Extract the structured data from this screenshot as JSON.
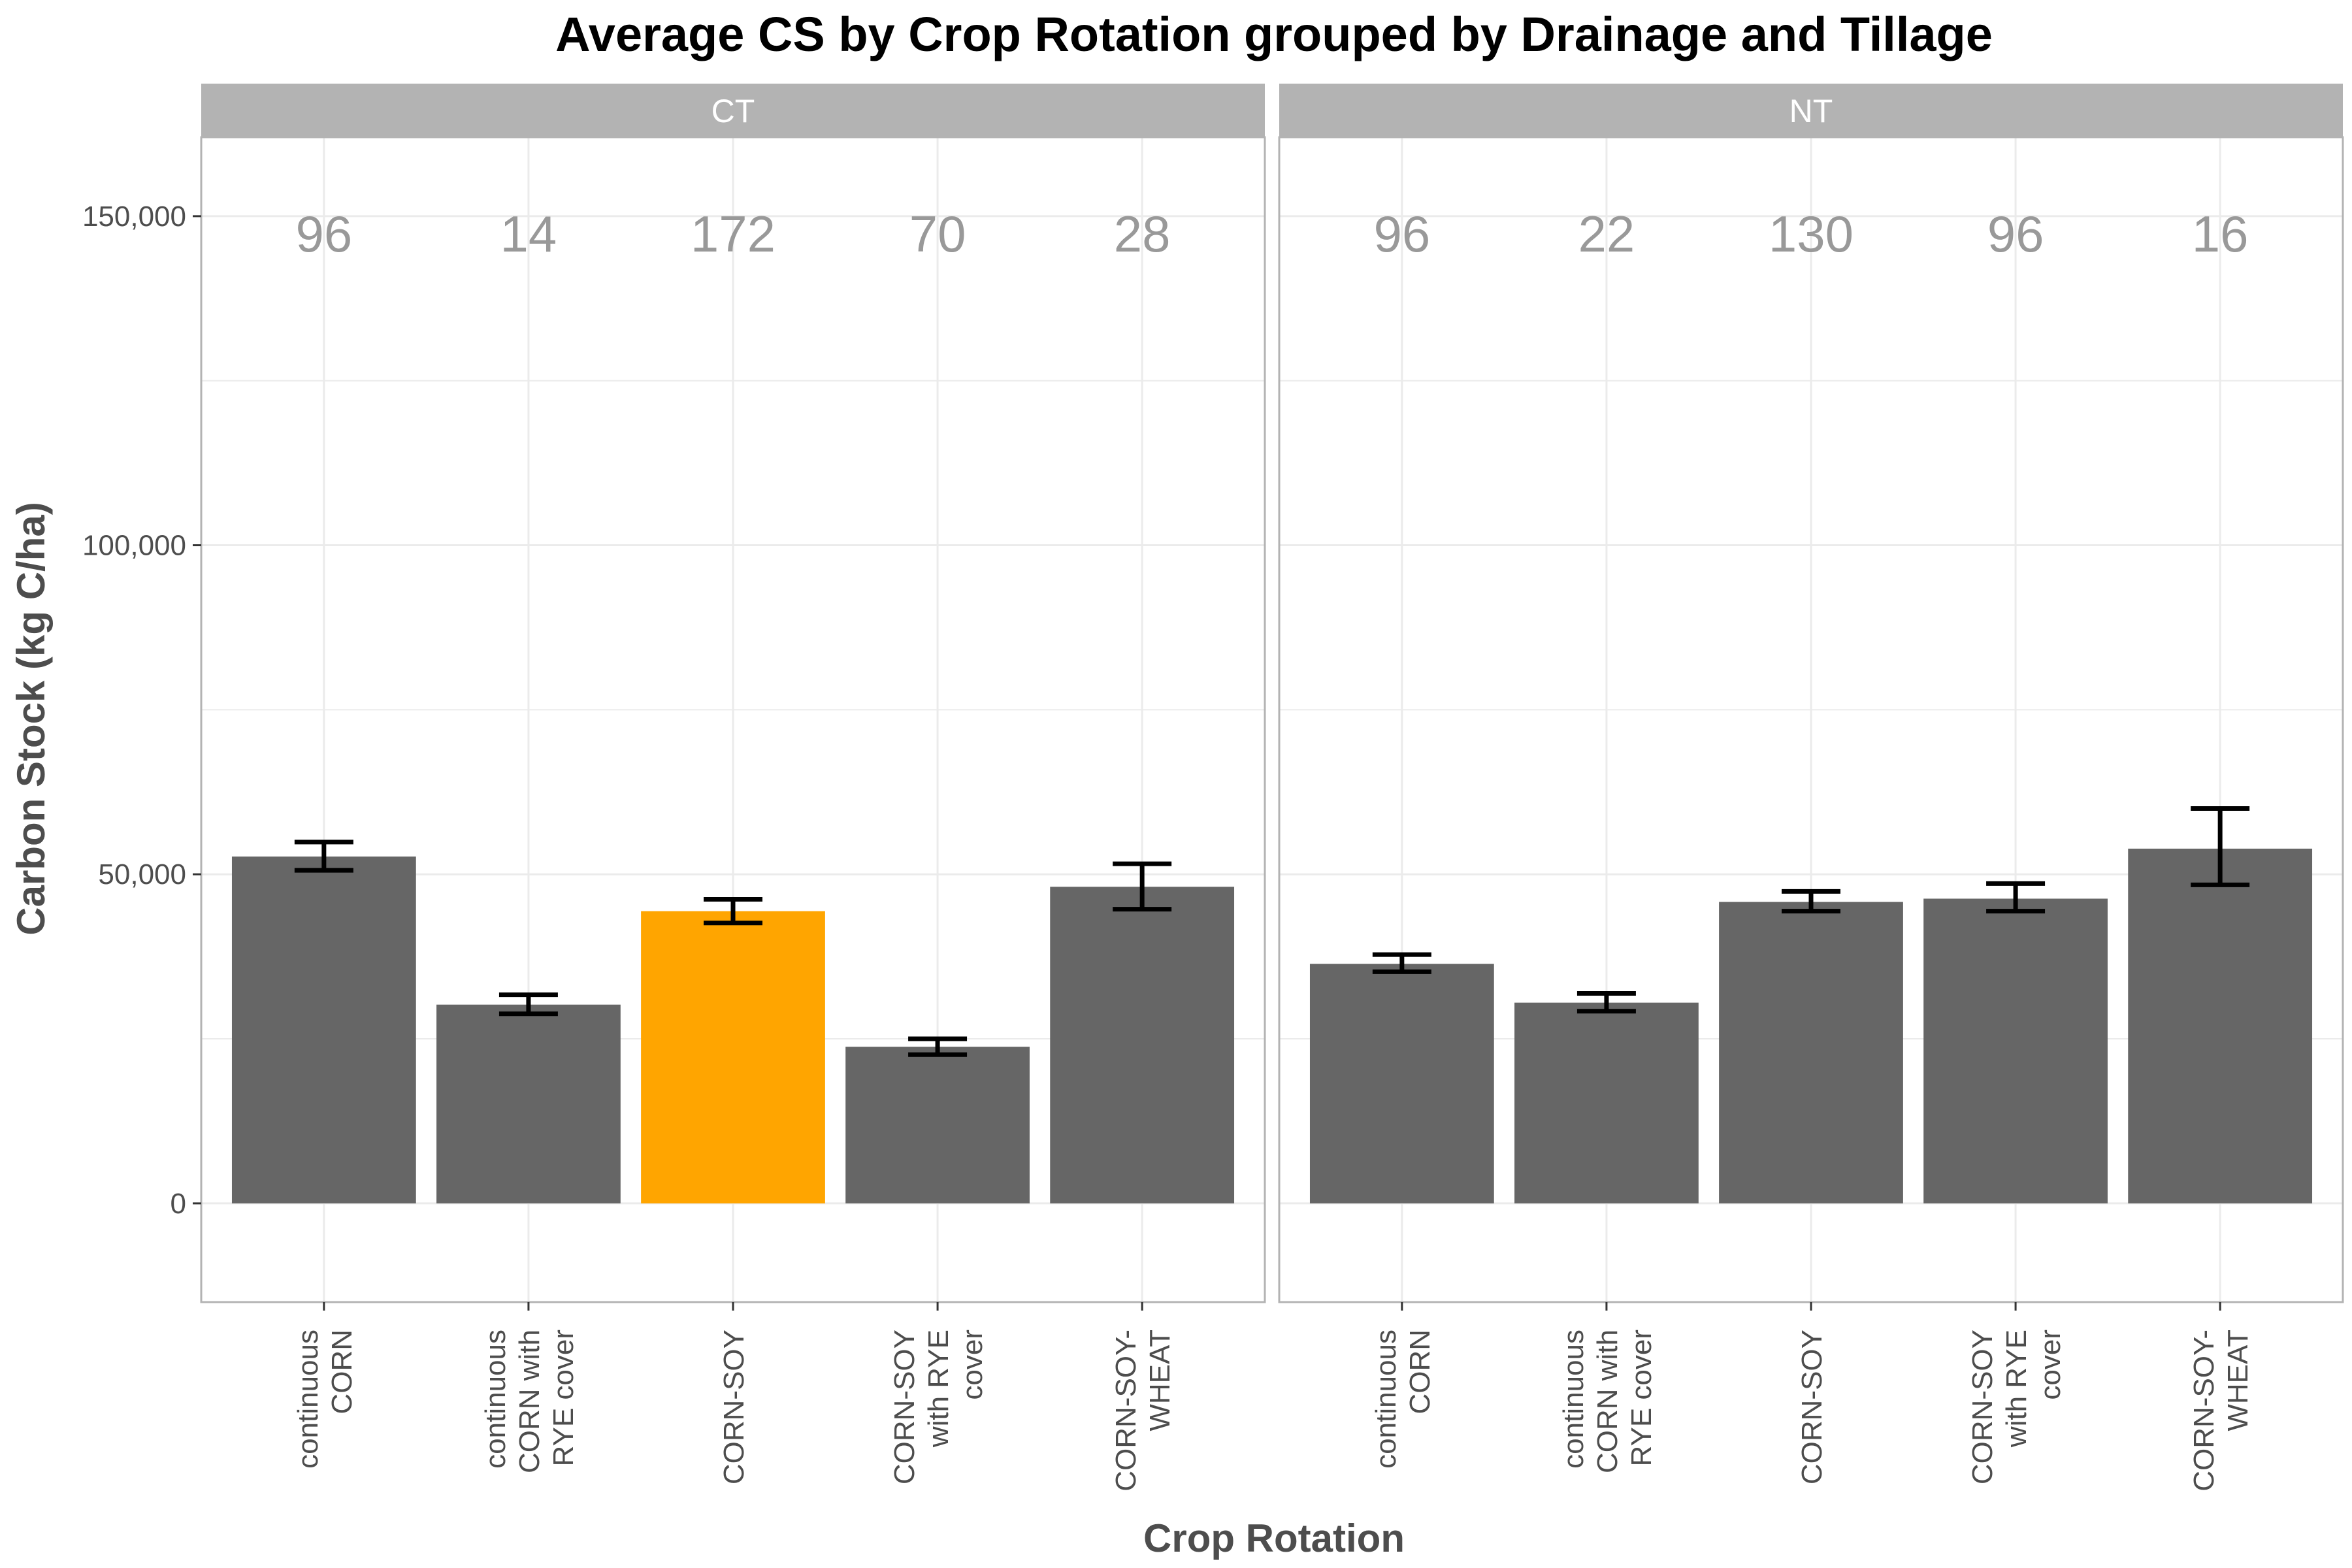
{
  "chart_data": {
    "type": "bar",
    "title": "Average CS by Crop Rotation grouped by Drainage and Tillage",
    "xlabel": "Crop Rotation",
    "ylabel": "Carbon Stock (kg C/ha)",
    "ylim": [
      -15000,
      162000
    ],
    "yticks": [
      0,
      50000,
      100000,
      150000
    ],
    "ytick_labels": [
      "0",
      "50,000",
      "100,000",
      "150,000"
    ],
    "grid": true,
    "categories": [
      [
        "continuous",
        "CORN"
      ],
      [
        "continuous",
        "CORN with",
        "RYE cover"
      ],
      [
        "CORN-SOY"
      ],
      [
        "CORN-SOY",
        "with RYE",
        "cover"
      ],
      [
        "CORN-SOY-",
        "WHEAT"
      ]
    ],
    "colors": {
      "bar": "#666666",
      "highlight": "#FFA500",
      "strip": "#b3b3b3",
      "grid": "#ebebeb",
      "panel_border": "#b3b3b3",
      "errorbar": "#000000"
    },
    "panels": [
      {
        "facet": "CT",
        "values": [
          52700,
          30200,
          44400,
          23800,
          48100
        ],
        "error_low": [
          50600,
          28800,
          42600,
          22600,
          44700
        ],
        "error_high": [
          54900,
          31700,
          46200,
          25000,
          51600
        ],
        "counts": [
          "96",
          "14",
          "172",
          "70",
          "28"
        ],
        "highlight": [
          false,
          false,
          true,
          false,
          false
        ]
      },
      {
        "facet": "NT",
        "values": [
          36400,
          30500,
          45800,
          46300,
          53900
        ],
        "error_low": [
          35200,
          29200,
          44400,
          44400,
          48400
        ],
        "error_high": [
          37800,
          31900,
          47400,
          48600,
          60000
        ],
        "counts": [
          "96",
          "22",
          "130",
          "96",
          "16"
        ],
        "highlight": [
          false,
          false,
          false,
          false,
          false
        ]
      }
    ]
  }
}
